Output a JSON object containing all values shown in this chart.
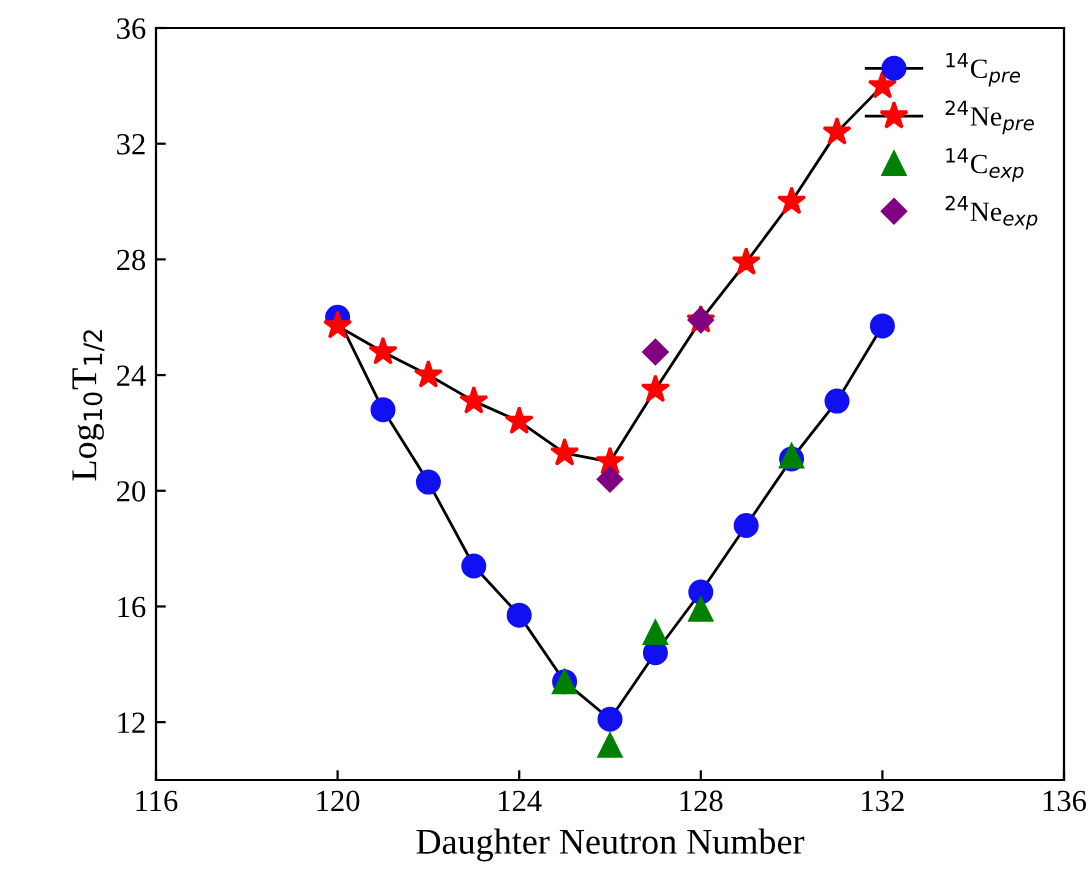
{
  "chart_data": {
    "type": "line",
    "xlabel": "Daughter Neutron Number",
    "ylabel": "Log$_{10}$T$_{1/2}$",
    "xlim": [
      116,
      136
    ],
    "xticks": [
      116,
      120,
      124,
      128,
      132,
      136
    ],
    "ylim": [
      10,
      36
    ],
    "yticks": [
      12,
      16,
      20,
      24,
      28,
      32,
      36
    ],
    "grid": false,
    "legend": "top right",
    "series": [
      {
        "name": "$^{14}$C$_{pre}$",
        "marker": "circle",
        "color": "#1010f0",
        "x": [
          120,
          121,
          122,
          123,
          124,
          125,
          126,
          127,
          128,
          129,
          130,
          131,
          132
        ],
        "values": [
          26.0,
          22.8,
          20.3,
          17.4,
          15.7,
          13.4,
          12.1,
          14.4,
          16.5,
          18.8,
          21.1,
          23.1,
          25.7
        ]
      },
      {
        "name": "$^{24}$Ne$_{pre}$",
        "marker": "star",
        "color": "#ff0000",
        "x": [
          120,
          121,
          122,
          123,
          124,
          125,
          126,
          127,
          128,
          129,
          130,
          131,
          132
        ],
        "values": [
          25.7,
          24.8,
          24.0,
          23.1,
          22.4,
          21.3,
          21.0,
          23.5,
          25.9,
          27.9,
          30.0,
          32.4,
          34.0
        ]
      },
      {
        "name": "$^{14}$C$_{exp}$",
        "type": "scatter",
        "marker": "triangle",
        "color": "#008000",
        "x": [
          125,
          126,
          127,
          128,
          130
        ],
        "values": [
          13.4,
          11.2,
          15.1,
          15.9,
          21.2
        ]
      },
      {
        "name": "$^{24}$Ne$_{exp}$",
        "type": "scatter",
        "marker": "diamond",
        "color": "#800080",
        "x": [
          126,
          127,
          128
        ],
        "values": [
          20.4,
          24.8,
          25.9
        ]
      }
    ]
  }
}
